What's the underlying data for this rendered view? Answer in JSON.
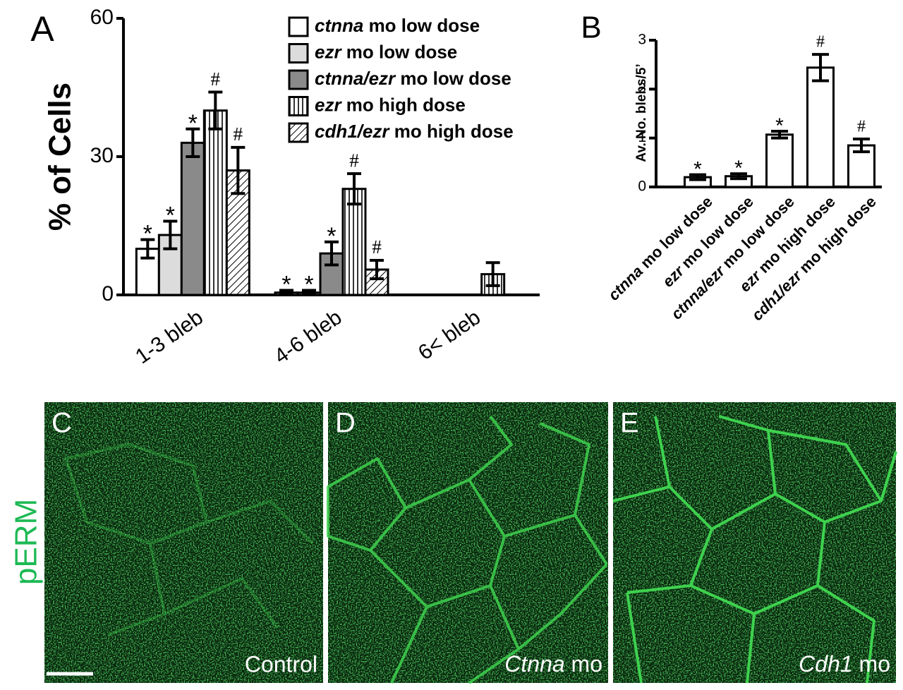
{
  "chart_data": [
    {
      "type": "bar",
      "panel": "A",
      "ylabel": "% of Cells",
      "categories": [
        "1-3 bleb",
        "4-6 bleb",
        "6< bleb"
      ],
      "series": [
        {
          "name": "ctnna mo low dose",
          "color": "#ffffff",
          "pattern": "solid",
          "values": [
            10,
            0.5,
            null
          ],
          "errors": [
            2,
            0.5,
            null
          ],
          "markers": [
            "*",
            "*",
            null
          ]
        },
        {
          "name": "ezr mo low dose",
          "color": "#dcdcdc",
          "pattern": "solid",
          "values": [
            13,
            0.5,
            null
          ],
          "errors": [
            3,
            0.5,
            null
          ],
          "markers": [
            "*",
            "*",
            null
          ]
        },
        {
          "name": "ctnna/ezr mo low dose",
          "color": "#8a8a8a",
          "pattern": "solid",
          "values": [
            33,
            9,
            null
          ],
          "errors": [
            3,
            2.5,
            null
          ],
          "markers": [
            "*",
            "*",
            null
          ]
        },
        {
          "name": "ezr mo high dose",
          "color": "#ffffff",
          "pattern": "vertical",
          "values": [
            40,
            23,
            4.5
          ],
          "errors": [
            4,
            3.3,
            2.5
          ],
          "markers": [
            "#",
            "#",
            null
          ]
        },
        {
          "name": "cdh1/ezr mo high dose",
          "color": "#ffffff",
          "pattern": "diagonal",
          "values": [
            27,
            5.5,
            null
          ],
          "errors": [
            5,
            2,
            null
          ],
          "markers": [
            "#",
            "#",
            null
          ]
        }
      ],
      "ylim": [
        0,
        60
      ],
      "yticks": [
        0,
        30,
        60
      ]
    },
    {
      "type": "bar",
      "panel": "B",
      "ylabel": "Av. No. blebs/5’",
      "categories": [
        "ctnna mo low dose",
        "ezr mo low dose",
        "ctnna/ezr mo low dose",
        "ezr mo high dose",
        "cdh1/ezr mo high dose"
      ],
      "values": [
        0.2,
        0.22,
        1.07,
        2.44,
        0.85
      ],
      "errors": [
        0.05,
        0.05,
        0.07,
        0.27,
        0.13
      ],
      "markers": [
        "*",
        "*",
        "*",
        "#",
        "#"
      ],
      "color": "#ffffff",
      "ylim": [
        0,
        3
      ],
      "yticks": [
        0,
        1,
        2,
        3
      ]
    }
  ],
  "images": {
    "stain": "pERM",
    "panels": [
      {
        "label": "C",
        "caption": "Control",
        "caption_style": "plain"
      },
      {
        "label": "D",
        "caption": "Ctnna mo",
        "caption_style": "italic-first"
      },
      {
        "label": "E",
        "caption": "Cdh1 mo",
        "caption_style": "italic-first"
      }
    ]
  }
}
